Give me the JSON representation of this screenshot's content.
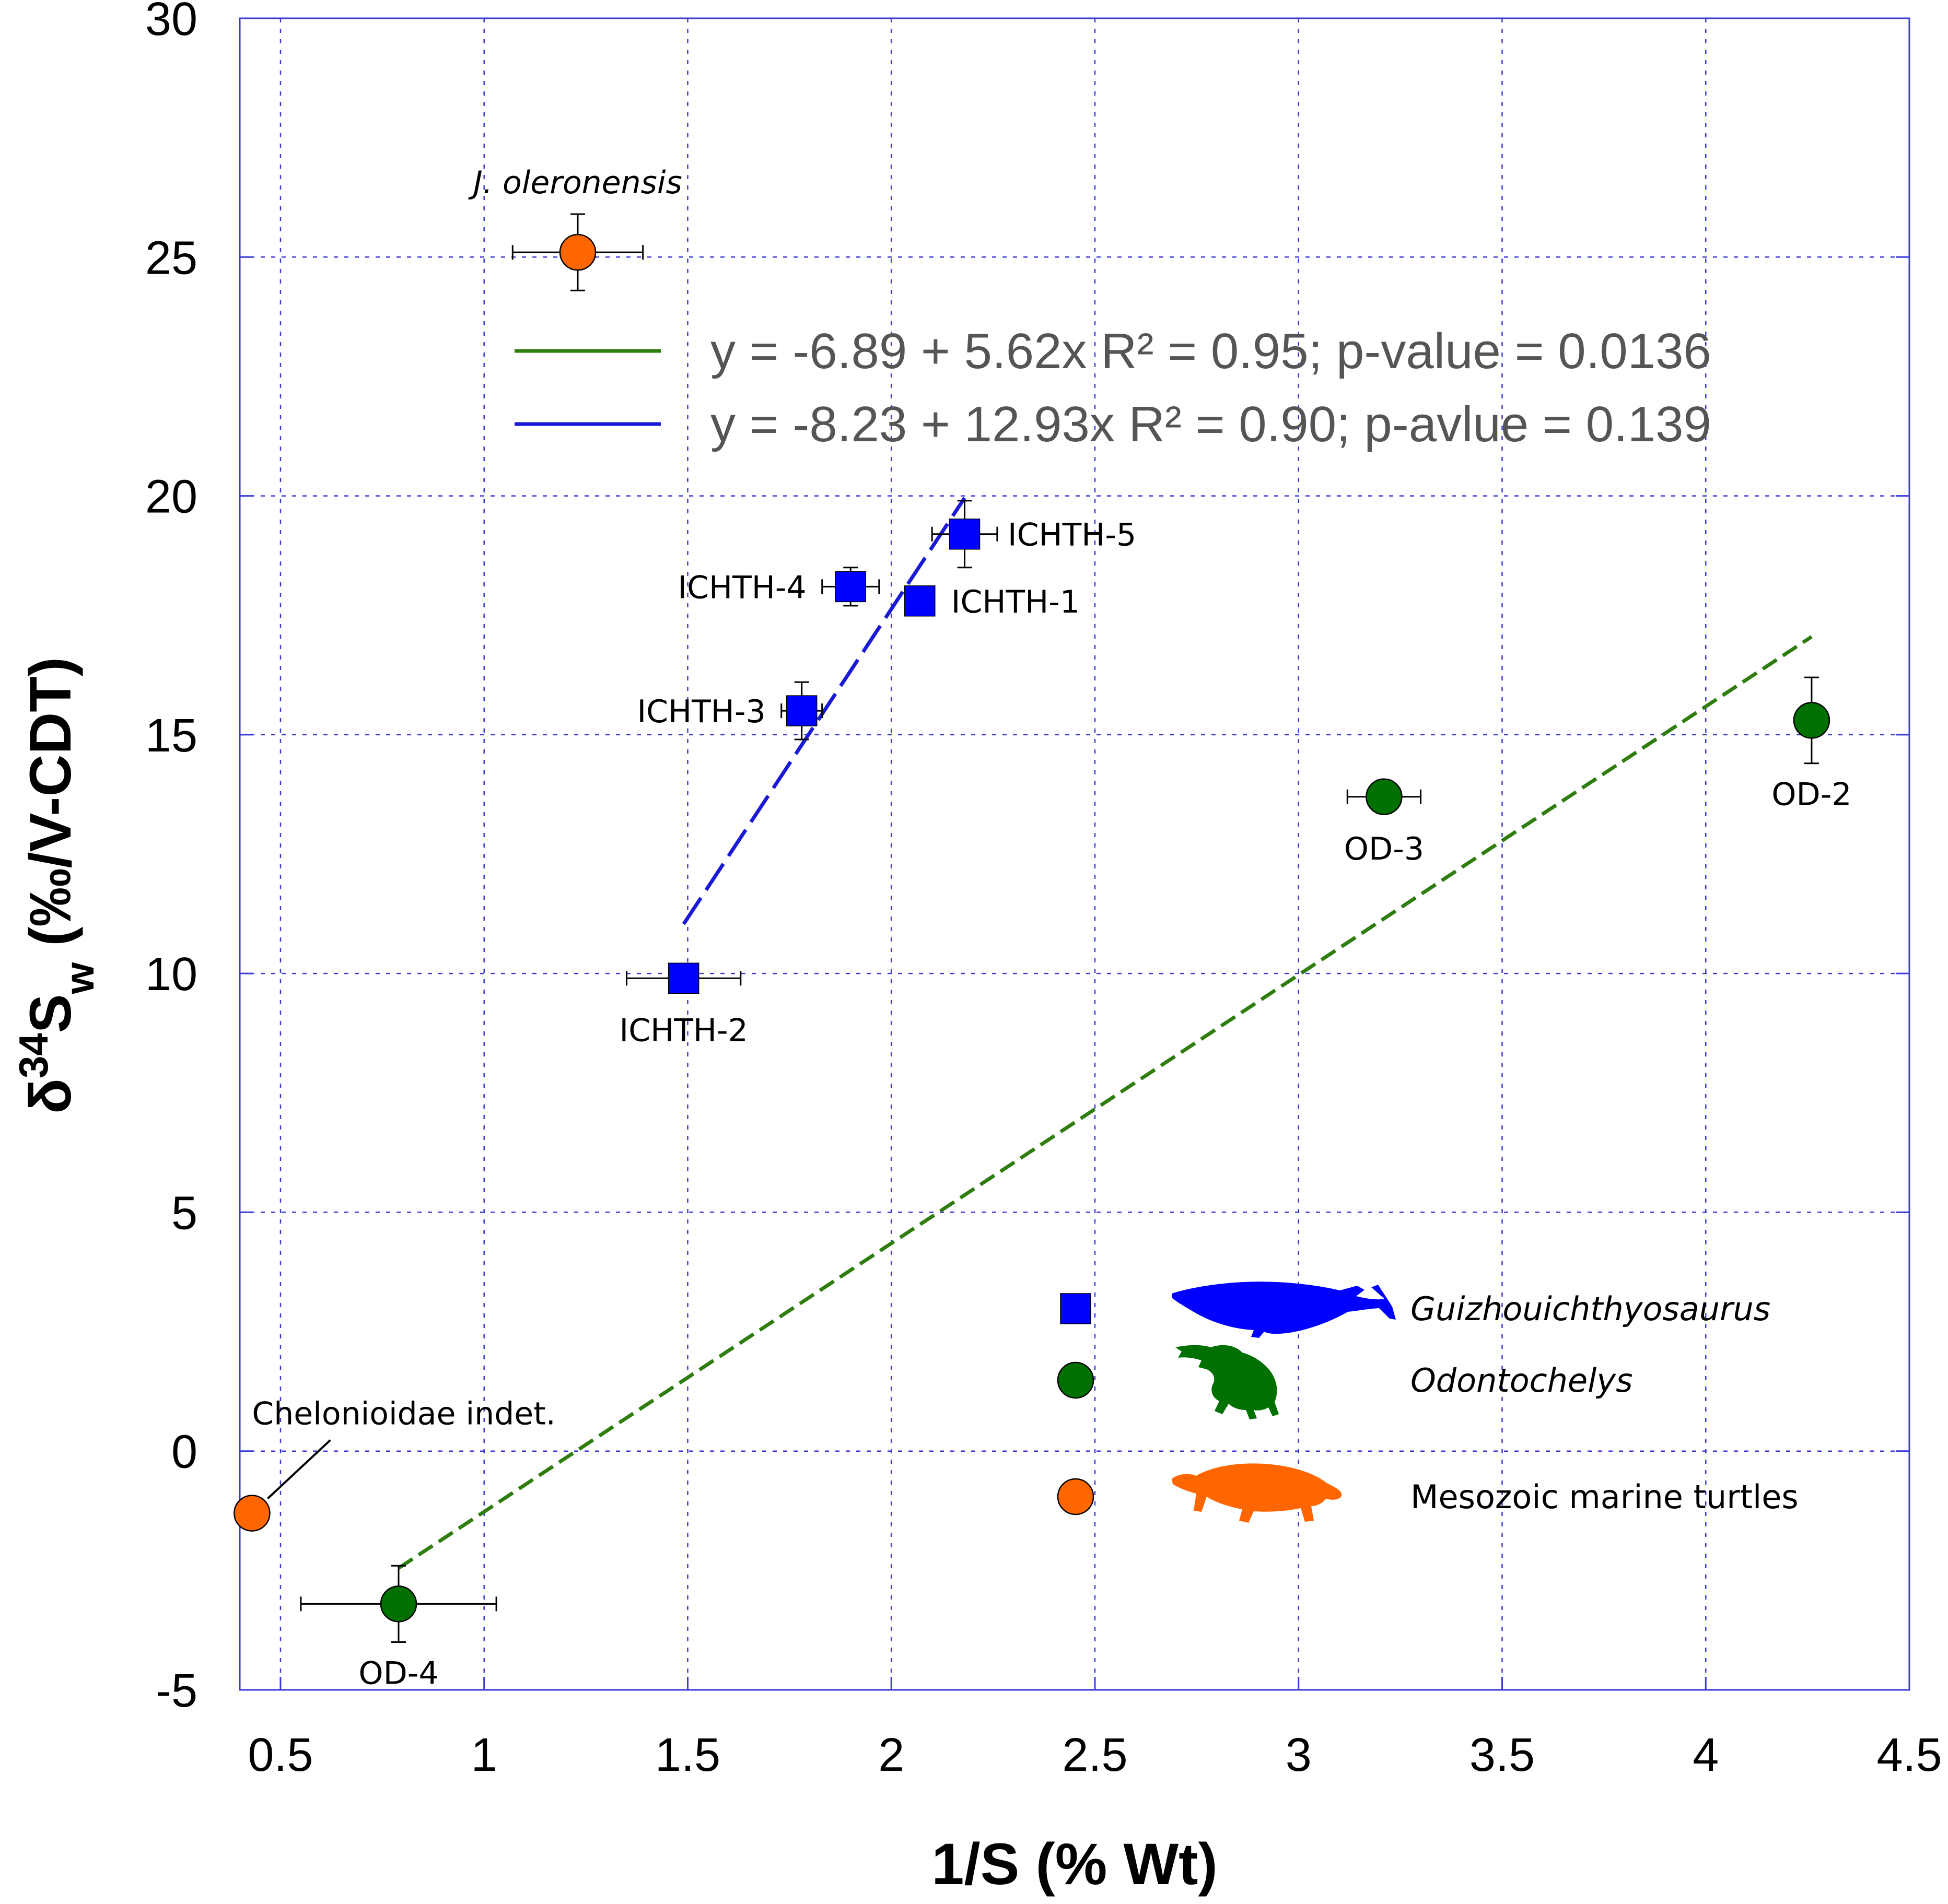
{
  "chart_data": {
    "type": "scatter",
    "xlabel": "1/S (% Wt)",
    "ylabel": {
      "delta": "δ",
      "sup": "34",
      "s": "S",
      "sub": "w",
      "rest": " (‰/V-CDT)"
    },
    "xlim": [
      0.4,
      4.5
    ],
    "ylim": [
      -5,
      30
    ],
    "x_ticks": [
      {
        "v": 0.5,
        "label": "0.5"
      },
      {
        "v": 1,
        "label": "1"
      },
      {
        "v": 1.5,
        "label": "1.5"
      },
      {
        "v": 2,
        "label": "2"
      },
      {
        "v": 2.5,
        "label": "2.5"
      },
      {
        "v": 3,
        "label": "3"
      },
      {
        "v": 3.5,
        "label": "3.5"
      },
      {
        "v": 4,
        "label": "4"
      },
      {
        "v": 4.5,
        "label": "4.5"
      }
    ],
    "y_ticks": [
      {
        "v": -5,
        "label": "-5"
      },
      {
        "v": 0,
        "label": "0"
      },
      {
        "v": 5,
        "label": "5"
      },
      {
        "v": 10,
        "label": "10"
      },
      {
        "v": 15,
        "label": "15"
      },
      {
        "v": 20,
        "label": "20"
      },
      {
        "v": 25,
        "label": "25"
      },
      {
        "v": 30,
        "label": "30"
      }
    ],
    "grid": true,
    "colors": {
      "blue": "#0000ff",
      "green": "#007000",
      "orange": "#ff6600",
      "grid": "#3b3bd6",
      "green_line": "#2e7d0e",
      "blue_line": "#1a1ad6"
    },
    "series": [
      {
        "name": "Guizhouichthyosaurus",
        "marker": "square",
        "color": "#0000ff",
        "points": [
          {
            "label": "ICHTH-1",
            "x": 2.07,
            "y": 17.8,
            "xerr": 0,
            "yerr": 0,
            "lpos": "right"
          },
          {
            "label": "ICHTH-2",
            "x": 1.49,
            "y": 9.9,
            "xerr": 0.14,
            "yerr": 0,
            "lpos": "below"
          },
          {
            "label": "ICHTH-3",
            "x": 1.78,
            "y": 15.5,
            "xerr": 0.05,
            "yerr": 0.6,
            "lpos": "left"
          },
          {
            "label": "ICHTH-4",
            "x": 1.9,
            "y": 18.1,
            "xerr": 0.07,
            "yerr": 0.4,
            "lpos": "left"
          },
          {
            "label": "ICHTH-5",
            "x": 2.18,
            "y": 19.2,
            "xerr": 0.08,
            "yerr": 0.7,
            "lpos": "right"
          }
        ]
      },
      {
        "name": "Odontochelys",
        "marker": "circle",
        "color": "#007000",
        "points": [
          {
            "label": "OD-2",
            "x": 4.26,
            "y": 15.3,
            "xerr": 0,
            "yerr": 0.9,
            "lpos": "below"
          },
          {
            "label": "OD-3",
            "x": 3.21,
            "y": 13.7,
            "xerr": 0.09,
            "yerr": 0,
            "lpos": "below"
          },
          {
            "label": "OD-4",
            "x": 0.79,
            "y": -3.2,
            "xerr": 0.24,
            "yerr": 0.8,
            "lpos": "below"
          }
        ]
      },
      {
        "name": "Mesozoic marine turtles",
        "marker": "circle",
        "color": "#ff6600",
        "points": [
          {
            "label": "J. oleronensis",
            "x": 1.23,
            "y": 25.1,
            "xerr": 0.16,
            "yerr": 0.8,
            "lpos": "above",
            "italic": true
          },
          {
            "label": "Chelonioidae indet.",
            "x": 0.43,
            "y": -1.3,
            "xerr": 0,
            "yerr": 0,
            "lpos": "callout"
          }
        ]
      }
    ],
    "fits": [
      {
        "name": "green-fit",
        "x0": 0.79,
        "x1": 4.26,
        "intercept": -6.89,
        "slope": 5.62,
        "color": "#2e7d0e",
        "equation": "y = -6.89 + 5.62x   R² = 0.95; p-value = 0.0136"
      },
      {
        "name": "blue-fit",
        "x0": 1.49,
        "x1": 2.18,
        "intercept": -8.23,
        "slope": 12.93,
        "color": "#1a1ad6",
        "equation": "y = -8.23 + 12.93x R² = 0.90; p-avlue = 0.139"
      }
    ],
    "legend": [
      {
        "label": "Guizhouichthyosaurus",
        "italic": true,
        "marker": "square",
        "color": "#0000ff",
        "silhouette": "ichthyosaur-silhouette"
      },
      {
        "label": "Odontochelys",
        "italic": true,
        "marker": "circle",
        "color": "#007000",
        "silhouette": "turtle-silhouette"
      },
      {
        "label": "Mesozoic marine turtles",
        "italic": false,
        "marker": "circle",
        "color": "#ff6600",
        "silhouette": "sea-turtle-silhouette"
      }
    ]
  }
}
